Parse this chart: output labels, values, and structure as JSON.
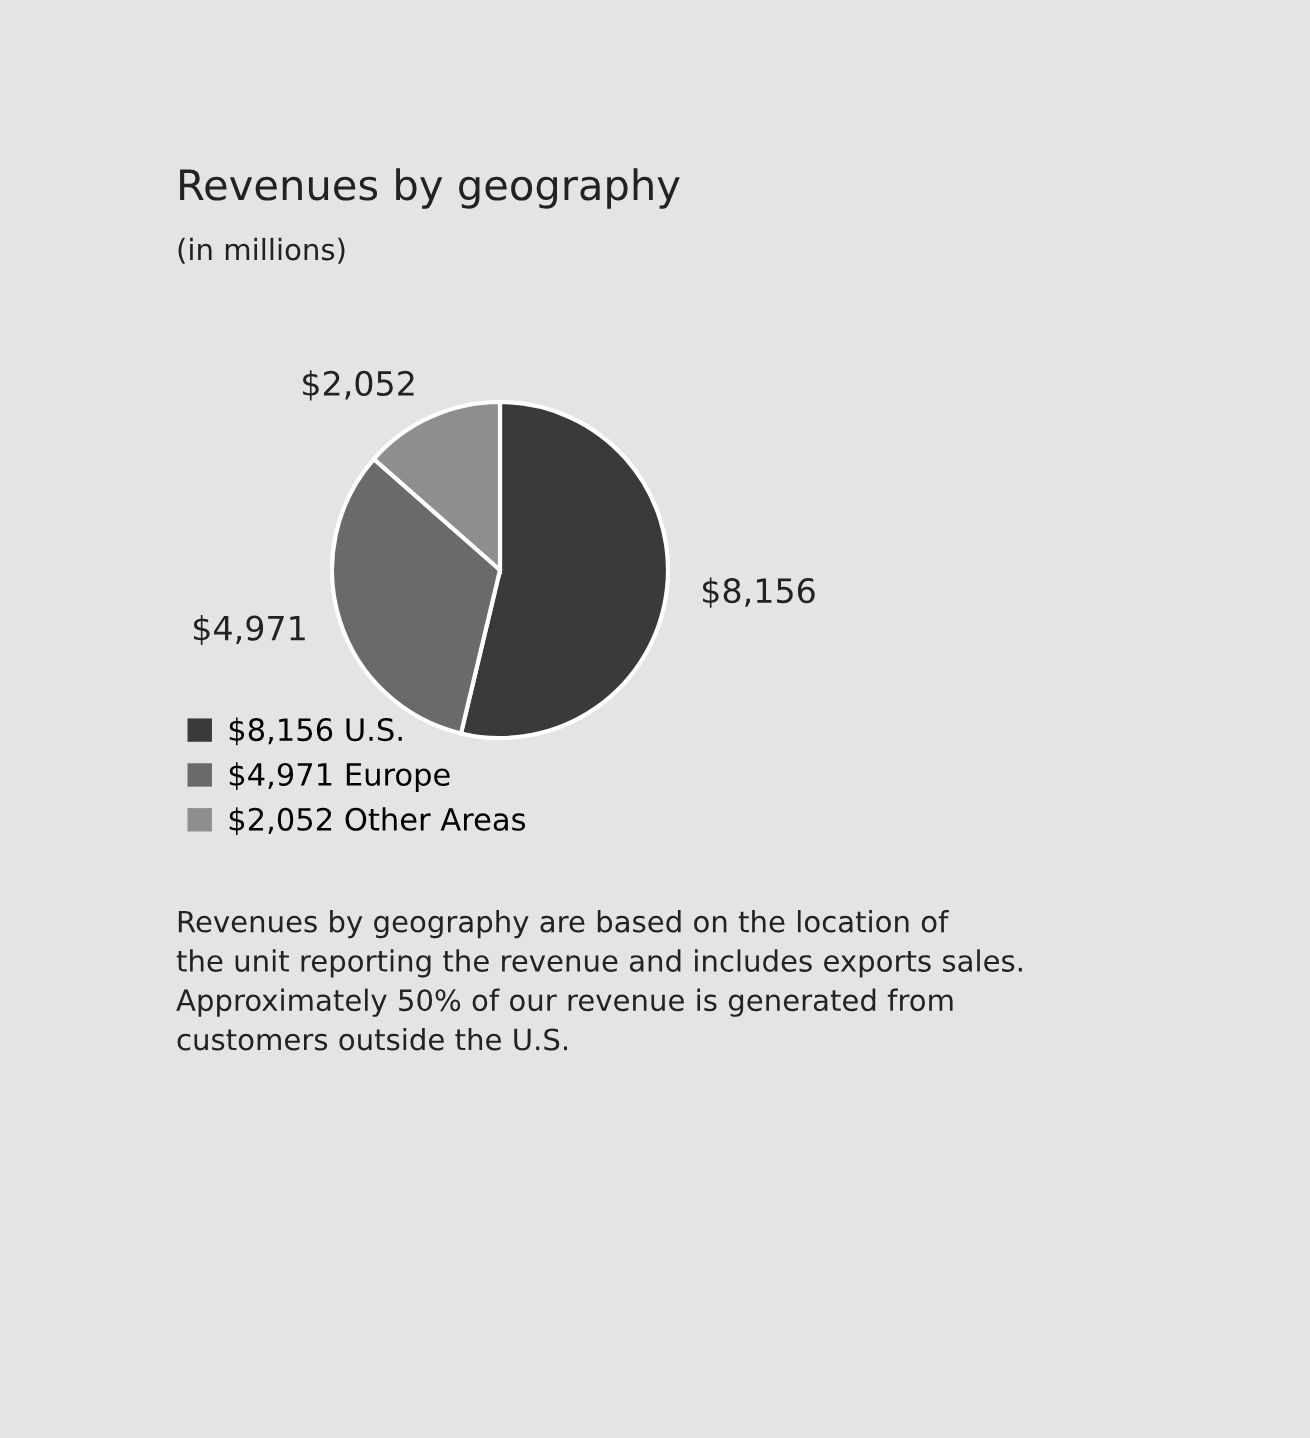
{
  "chart_data": {
    "type": "pie",
    "title": "Revenues by geography",
    "subtitle": "(in millions)",
    "categories": [
      "U.S.",
      "Europe",
      "Other Areas"
    ],
    "values": [
      8156,
      4971,
      2052
    ],
    "value_labels": [
      "$8,156",
      "$4,971",
      "$2,052"
    ],
    "colors": [
      "#3a3a3a",
      "#6a6a6a",
      "#8e8e8e"
    ],
    "legend": "bottom",
    "annotations": [
      "Revenues by geography are based on the location of\nthe unit reporting the revenue and includes exports sales.\nApproximately 50% of our revenue is generated from\ncustomers outside the U.S."
    ]
  }
}
